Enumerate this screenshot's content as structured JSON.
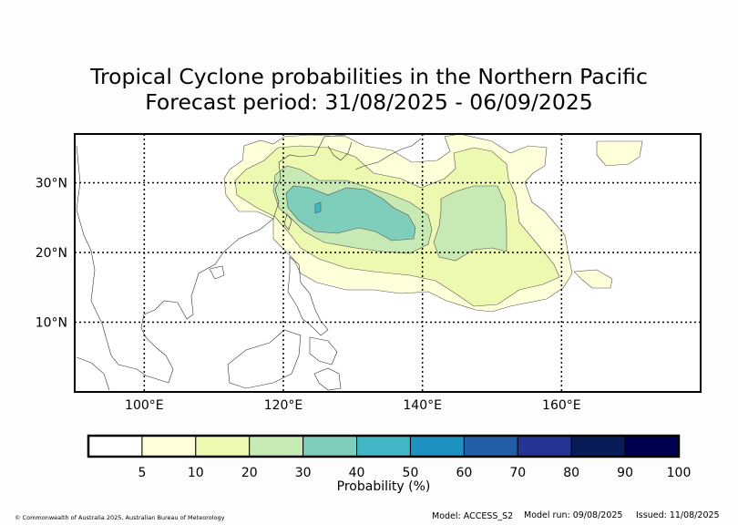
{
  "title": {
    "line1": "Tropical Cyclone probabilities in the Northern Pacific",
    "line2": "Forecast period: 31/08/2025 - 06/09/2025"
  },
  "map": {
    "lon_range": [
      90,
      180
    ],
    "lat_range": [
      0,
      37
    ],
    "lon_ticks": [
      {
        "value": 100,
        "label": "100°E"
      },
      {
        "value": 120,
        "label": "120°E"
      },
      {
        "value": 140,
        "label": "140°E"
      },
      {
        "value": 160,
        "label": "160°E"
      }
    ],
    "lat_ticks": [
      {
        "value": 10,
        "label": "10°N"
      },
      {
        "value": 20,
        "label": "20°N"
      },
      {
        "value": 30,
        "label": "30°N"
      }
    ],
    "grid": "dotted"
  },
  "colorbar": {
    "label": "Probability (%)",
    "bins": [
      {
        "from": 0,
        "to": 5,
        "color": "#ffffff"
      },
      {
        "from": 5,
        "to": 10,
        "color": "#ffffd9"
      },
      {
        "from": 10,
        "to": 20,
        "color": "#edf8b1"
      },
      {
        "from": 20,
        "to": 30,
        "color": "#c7e9b4"
      },
      {
        "from": 30,
        "to": 40,
        "color": "#7fcdbb"
      },
      {
        "from": 40,
        "to": 50,
        "color": "#41b6c4"
      },
      {
        "from": 50,
        "to": 60,
        "color": "#1d91c0"
      },
      {
        "from": 60,
        "to": 70,
        "color": "#225ea8"
      },
      {
        "from": 70,
        "to": 80,
        "color": "#253494"
      },
      {
        "from": 80,
        "to": 90,
        "color": "#081d58"
      },
      {
        "from": 90,
        "to": 100,
        "color": "#000050"
      }
    ],
    "tick_labels": [
      "5",
      "10",
      "20",
      "30",
      "40",
      "50",
      "60",
      "70",
      "80",
      "90",
      "100"
    ]
  },
  "footer": {
    "copyright": "© Commonwealth of Australia 2025, Australian Bureau of Meteorology",
    "model": "Model: ACCESS_S2",
    "model_run": "Model run: 09/08/2025",
    "issued": "Issued: 11/08/2025"
  }
}
